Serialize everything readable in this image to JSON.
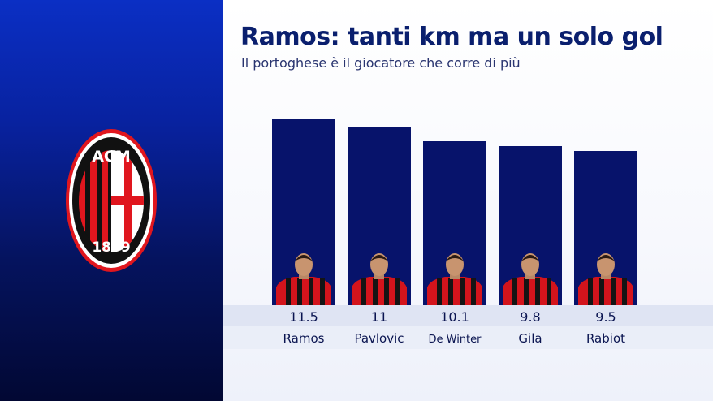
{
  "colors": {
    "bar": "#07136b",
    "title": "#0a1f6e",
    "sidebar_top": "#0b2fc4",
    "sidebar_bottom": "#020833",
    "crest_red": "#e0161e",
    "crest_black": "#111111"
  },
  "crest": {
    "icon": "ac-milan-crest-icon",
    "top_text": "ACM",
    "bottom_text": "1899"
  },
  "chart_data": {
    "type": "bar",
    "title": "Ramos: tanti km ma un solo gol",
    "subtitle": "Il portoghese è il giocatore che corre di più",
    "categories": [
      "Ramos",
      "Pavlovic",
      "De Winter",
      "Gila",
      "Rabiot"
    ],
    "values": [
      11.5,
      11,
      10.1,
      9.8,
      9.5
    ],
    "value_labels": [
      "11.5",
      "11",
      "10.1",
      "9.8",
      "9.5"
    ],
    "xlabel": "",
    "ylabel": "",
    "grid": false,
    "legend": "none",
    "bar_icon": "player-portrait-icon"
  }
}
